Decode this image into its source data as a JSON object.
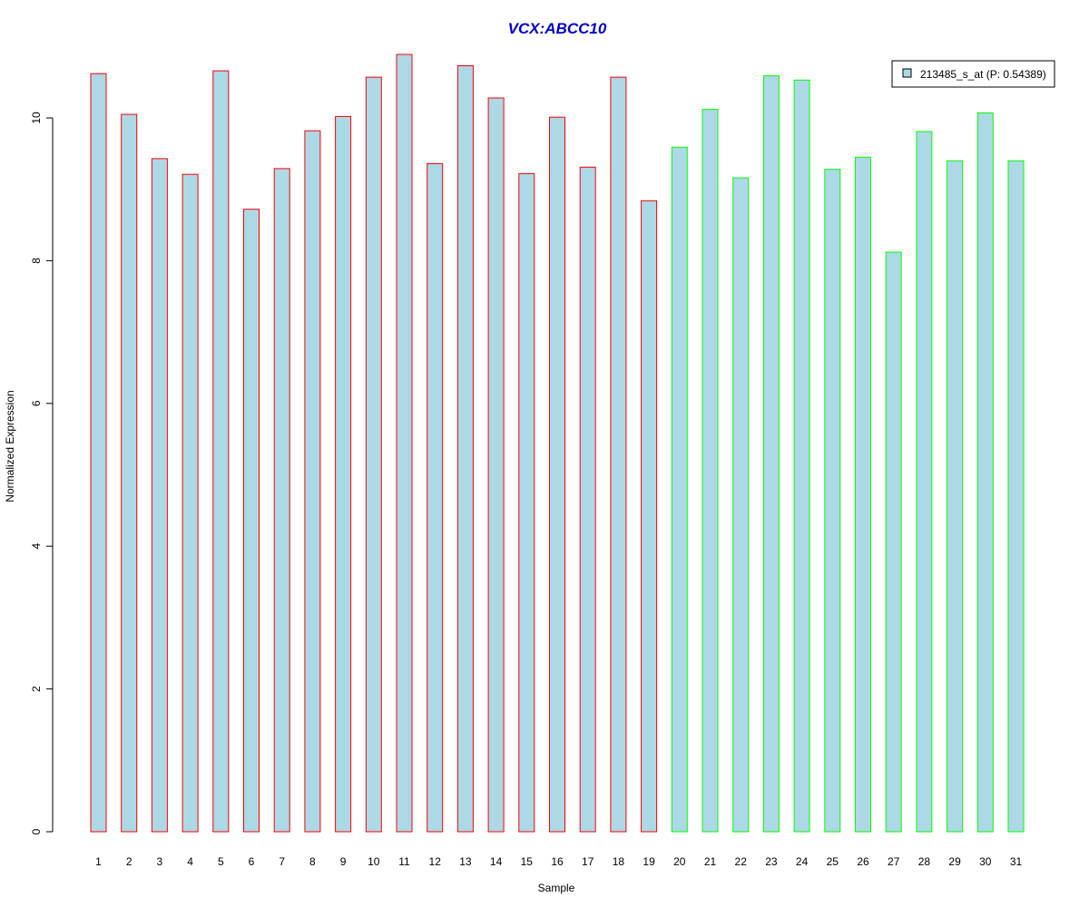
{
  "chart_data": {
    "type": "bar",
    "title": "VCX:ABCC10",
    "xlabel": "Sample",
    "ylabel": "Normalized Expression",
    "ylim": [
      0,
      10.9
    ],
    "yticks": [
      0,
      2,
      4,
      6,
      8,
      10
    ],
    "categories": [
      "1",
      "2",
      "3",
      "4",
      "5",
      "6",
      "7",
      "8",
      "9",
      "10",
      "11",
      "12",
      "13",
      "14",
      "15",
      "16",
      "17",
      "18",
      "19",
      "20",
      "21",
      "22",
      "23",
      "24",
      "25",
      "26",
      "27",
      "28",
      "29",
      "30",
      "31"
    ],
    "series": [
      {
        "name": "213485_s_at (P: 0.54389)",
        "values": [
          10.62,
          10.05,
          9.43,
          9.21,
          10.66,
          8.72,
          9.29,
          9.82,
          10.02,
          10.57,
          10.89,
          9.36,
          10.73,
          10.28,
          9.22,
          10.01,
          9.31,
          10.57,
          8.84,
          9.59,
          10.12,
          9.16,
          10.59,
          10.53,
          9.28,
          9.45,
          8.12,
          9.81,
          9.4,
          10.07,
          9.4
        ],
        "fill": "#ADD8E6",
        "border_colors": [
          "#FF0000",
          "#FF0000",
          "#FF0000",
          "#FF0000",
          "#FF0000",
          "#FF0000",
          "#FF0000",
          "#FF0000",
          "#FF0000",
          "#FF0000",
          "#FF0000",
          "#FF0000",
          "#FF0000",
          "#FF0000",
          "#FF0000",
          "#FF0000",
          "#FF0000",
          "#FF0000",
          "#FF0000",
          "#00FF00",
          "#00FF00",
          "#00FF00",
          "#00FF00",
          "#00FF00",
          "#00FF00",
          "#00FF00",
          "#00FF00",
          "#00FF00",
          "#00FF00",
          "#00FF00",
          "#00FF00"
        ]
      }
    ],
    "title_color": "#0000CC",
    "legend_position": "top-right",
    "grid": false
  }
}
